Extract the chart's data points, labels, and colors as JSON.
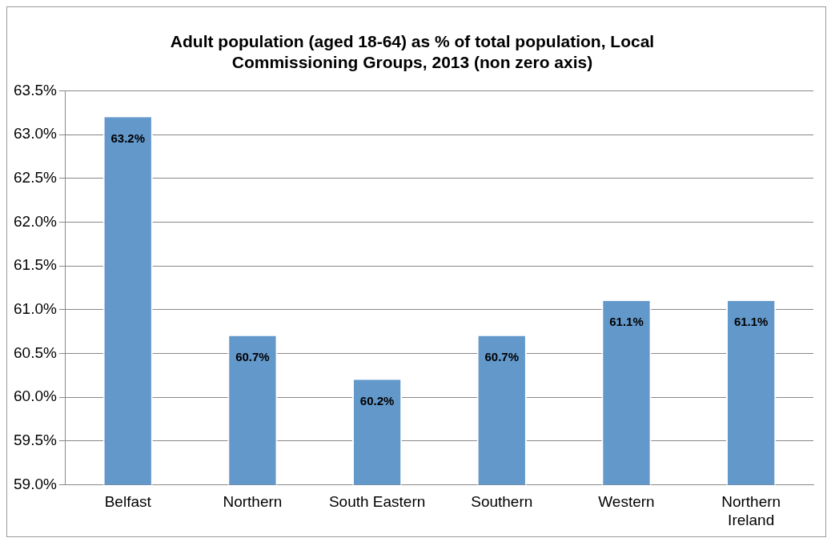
{
  "chart_data": {
    "type": "bar",
    "title": "Adult population (aged 18-64) as % of total population, Local Commissioning Groups, 2013 (non zero axis)",
    "categories": [
      "Belfast",
      "Northern",
      "South Eastern",
      "Southern",
      "Western",
      "Northern Ireland"
    ],
    "values": [
      63.2,
      60.7,
      60.2,
      60.7,
      61.1,
      61.1
    ],
    "value_labels": [
      "63.2%",
      "60.7%",
      "60.2%",
      "60.7%",
      "61.1%",
      "61.1%"
    ],
    "color": "#6398cb",
    "ylim": [
      59.0,
      63.5
    ],
    "yticks": [
      {
        "value": 59.0,
        "label": "59.0%"
      },
      {
        "value": 59.5,
        "label": "59.5%"
      },
      {
        "value": 60.0,
        "label": "60.0%"
      },
      {
        "value": 60.5,
        "label": "60.5%"
      },
      {
        "value": 61.0,
        "label": "61.0%"
      },
      {
        "value": 61.5,
        "label": "61.5%"
      },
      {
        "value": 62.0,
        "label": "62.0%"
      },
      {
        "value": 62.5,
        "label": "62.5%"
      },
      {
        "value": 63.0,
        "label": "63.0%"
      },
      {
        "value": 63.5,
        "label": "63.5%"
      }
    ],
    "grid": "y",
    "legend": false
  }
}
